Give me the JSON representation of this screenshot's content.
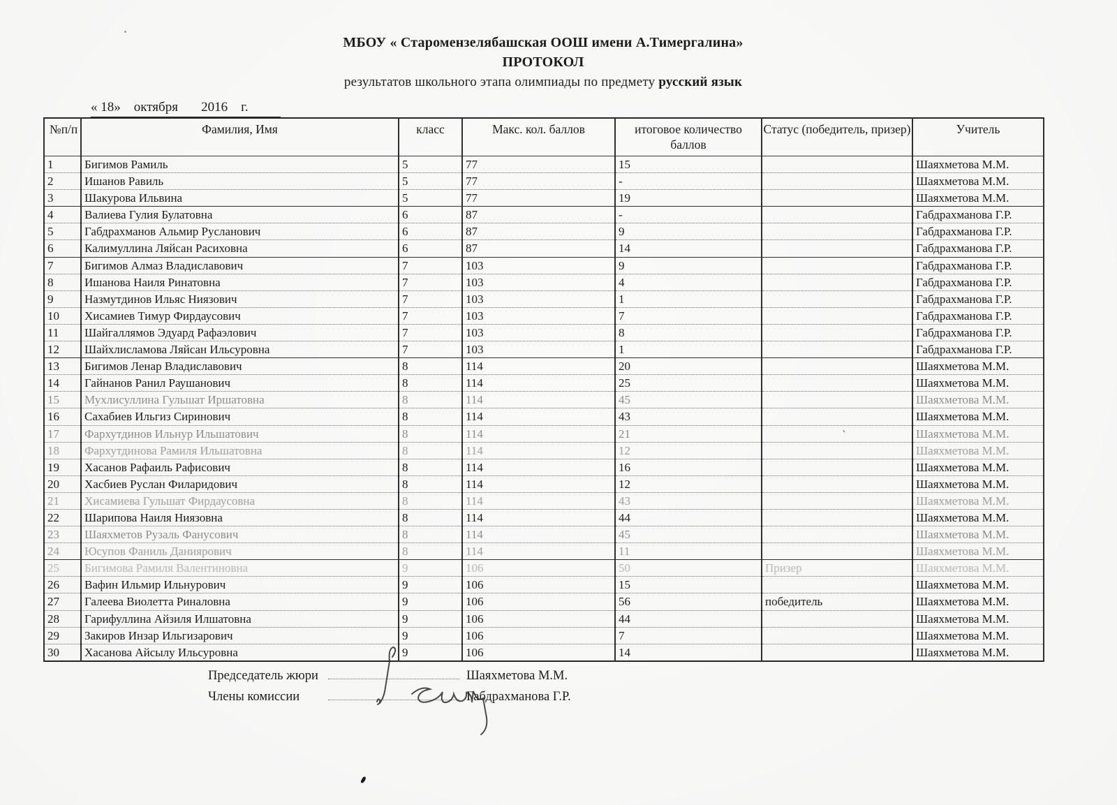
{
  "page": {
    "school": "МБОУ « Старомензелябашская ООШ имени А.Тимергалина»",
    "doc_type": "ПРОТОКОЛ",
    "subtitle_prefix": "результатов школьного этапа олимпиады по предмету",
    "subject": "русский язык",
    "date_line": "« 18»    октября       2016    г."
  },
  "table": {
    "columns": {
      "num": "№п/п",
      "name": "Фамилия, Имя",
      "grade": "класс",
      "max": "Макс. кол. баллов",
      "score": "итоговое количество баллов",
      "status": "Статус (победитель, призер)",
      "teacher": "Учитель"
    },
    "rows": [
      {
        "num": "1",
        "name": "Бигимов Рамиль",
        "grade": "5",
        "max": "77",
        "score": "15",
        "status": "",
        "teacher": "Шаяхметова М.М.",
        "faded": 0
      },
      {
        "num": "2",
        "name": "Ишанов Равиль",
        "grade": "5",
        "max": "77",
        "score": "-",
        "status": "",
        "teacher": "Шаяхметова М.М.",
        "faded": 0
      },
      {
        "num": "3",
        "name": "Шакурова Ильвина",
        "grade": "5",
        "max": "77",
        "score": "19",
        "status": "",
        "teacher": "Шаяхметова М.М.",
        "faded": 0
      },
      {
        "num": "4",
        "name": "Валиева Гулия Булатовна",
        "grade": "6",
        "max": "87",
        "score": "-",
        "status": "",
        "teacher": "Габдрахманова Г.Р.",
        "faded": 0
      },
      {
        "num": "5",
        "name": "Габдрахманов Альмир Русланович",
        "grade": "6",
        "max": "87",
        "score": "9",
        "status": "",
        "teacher": "Габдрахманова Г.Р.",
        "faded": 0
      },
      {
        "num": "6",
        "name": "Калимуллина Ляйсан Расиховна",
        "grade": "6",
        "max": "87",
        "score": "14",
        "status": "",
        "teacher": "Габдрахманова Г.Р.",
        "faded": 0
      },
      {
        "num": "7",
        "name": "Бигимов Алмаз Владиславович",
        "grade": "7",
        "max": "103",
        "score": "9",
        "status": "",
        "teacher": "Габдрахманова Г.Р.",
        "faded": 0
      },
      {
        "num": "8",
        "name": "Ишанова Наиля Ринатовна",
        "grade": "7",
        "max": "103",
        "score": "4",
        "status": "",
        "teacher": "Габдрахманова Г.Р.",
        "faded": 0
      },
      {
        "num": "9",
        "name": "Назмутдинов Ильяс Ниязович",
        "grade": "7",
        "max": "103",
        "score": "1",
        "status": "",
        "teacher": "Габдрахманова Г.Р.",
        "faded": 0
      },
      {
        "num": "10",
        "name": "Хисамиев Тимур Фирдаусович",
        "grade": "7",
        "max": "103",
        "score": "7",
        "status": "",
        "teacher": "Габдрахманова Г.Р.",
        "faded": 0
      },
      {
        "num": "11",
        "name": "Шайгаллямов Эдуард Рафаэлович",
        "grade": "7",
        "max": "103",
        "score": "8",
        "status": "",
        "teacher": "Габдрахманова Г.Р.",
        "faded": 0
      },
      {
        "num": "12",
        "name": "Шайхлисламова Ляйсан Ильсуровна",
        "grade": "7",
        "max": "103",
        "score": "1",
        "status": "",
        "teacher": "Габдрахманова Г.Р.",
        "faded": 0
      },
      {
        "num": "13",
        "name": "Бигимов Ленар Владиславович",
        "grade": "8",
        "max": "114",
        "score": "20",
        "status": "",
        "teacher": "Шаяхметова М.М.",
        "faded": 0
      },
      {
        "num": "14",
        "name": "Гайнанов Ранил Раушанович",
        "grade": "8",
        "max": "114",
        "score": "25",
        "status": "",
        "teacher": "Шаяхметова М.М.",
        "faded": 0
      },
      {
        "num": "15",
        "name": "Мухлисуллина Гульшат Иршатовна",
        "grade": "8",
        "max": "114",
        "score": "45",
        "status": "",
        "teacher": "Шаяхметова М.М.",
        "faded": 1
      },
      {
        "num": "16",
        "name": "Сахабиев Ильгиз Сиринович",
        "grade": "8",
        "max": "114",
        "score": "43",
        "status": "",
        "teacher": "Шаяхметова М.М.",
        "faded": 0
      },
      {
        "num": "17",
        "name": "Фархутдинов Ильнур Ильшатович",
        "grade": "8",
        "max": "114",
        "score": "21",
        "status": "",
        "teacher": "Шаяхметова М.М.",
        "faded": 1
      },
      {
        "num": "18",
        "name": "Фархутдинова Рамиля Ильшатовна",
        "grade": "8",
        "max": "114",
        "score": "12",
        "status": "",
        "teacher": "Шаяхметова М.М.",
        "faded": 2
      },
      {
        "num": "19",
        "name": "Хасанов Рафаиль Рафисович",
        "grade": "8",
        "max": "114",
        "score": "16",
        "status": "",
        "teacher": "Шаяхметова М.М.",
        "faded": 0
      },
      {
        "num": "20",
        "name": "Хасбиев Руслан Филаридович",
        "grade": "8",
        "max": "114",
        "score": "12",
        "status": "",
        "teacher": "Шаяхметова М.М.",
        "faded": 0
      },
      {
        "num": "21",
        "name": "Хисамиева Гульшат Фирдаусовна",
        "grade": "8",
        "max": "114",
        "score": "43",
        "status": "",
        "teacher": "Шаяхметова М.М.",
        "faded": 2
      },
      {
        "num": "22",
        "name": "Шарипова Наиля Ниязовна",
        "grade": "8",
        "max": "114",
        "score": "44",
        "status": "",
        "teacher": "Шаяхметова М.М.",
        "faded": 0
      },
      {
        "num": "23",
        "name": "Шаяхметов Рузаль Фанусович",
        "grade": "8",
        "max": "114",
        "score": "45",
        "status": "",
        "teacher": "Шаяхметова М.М.",
        "faded": 1
      },
      {
        "num": "24",
        "name": "Юсупов Фаниль Даниярович",
        "grade": "8",
        "max": "114",
        "score": "11",
        "status": "",
        "teacher": "Шаяхметова М.М.",
        "faded": 2
      },
      {
        "num": "25",
        "name": "Бигимова Рамиля Валентиновна",
        "grade": "9",
        "max": "106",
        "score": "50",
        "status": "Призер",
        "teacher": "Шаяхметова М.М.",
        "faded": 3
      },
      {
        "num": "26",
        "name": "Вафин Ильмир Ильнурович",
        "grade": "9",
        "max": "106",
        "score": "15",
        "status": "",
        "teacher": "Шаяхметова М.М.",
        "faded": 0
      },
      {
        "num": "27",
        "name": "Галеева Виолетта Риналовна",
        "grade": "9",
        "max": "106",
        "score": "56",
        "status": "победитель",
        "teacher": "Шаяхметова М.М.",
        "faded": 0
      },
      {
        "num": "28",
        "name": "Гарифуллина Айзиля Илшатовна",
        "grade": "9",
        "max": "106",
        "score": "44",
        "status": "",
        "teacher": "Шаяхметова М.М.",
        "faded": 0
      },
      {
        "num": "29",
        "name": "Закиров Инзар Ильгизарович",
        "grade": "9",
        "max": "106",
        "score": "7",
        "status": "",
        "teacher": "Шаяхметова М.М.",
        "faded": 0
      },
      {
        "num": "30",
        "name": "Хасанова Айсылу Ильсуровна",
        "grade": "9",
        "max": "106",
        "score": "14",
        "status": "",
        "teacher": "Шаяхметова М.М.",
        "faded": 0
      }
    ]
  },
  "signatures": {
    "chair_label": "Председатель жюри",
    "chair_name": "Шаяхметова М.М.",
    "members_label": "Члены комиссии",
    "members_name": "Габдрахманова Г.Р."
  }
}
